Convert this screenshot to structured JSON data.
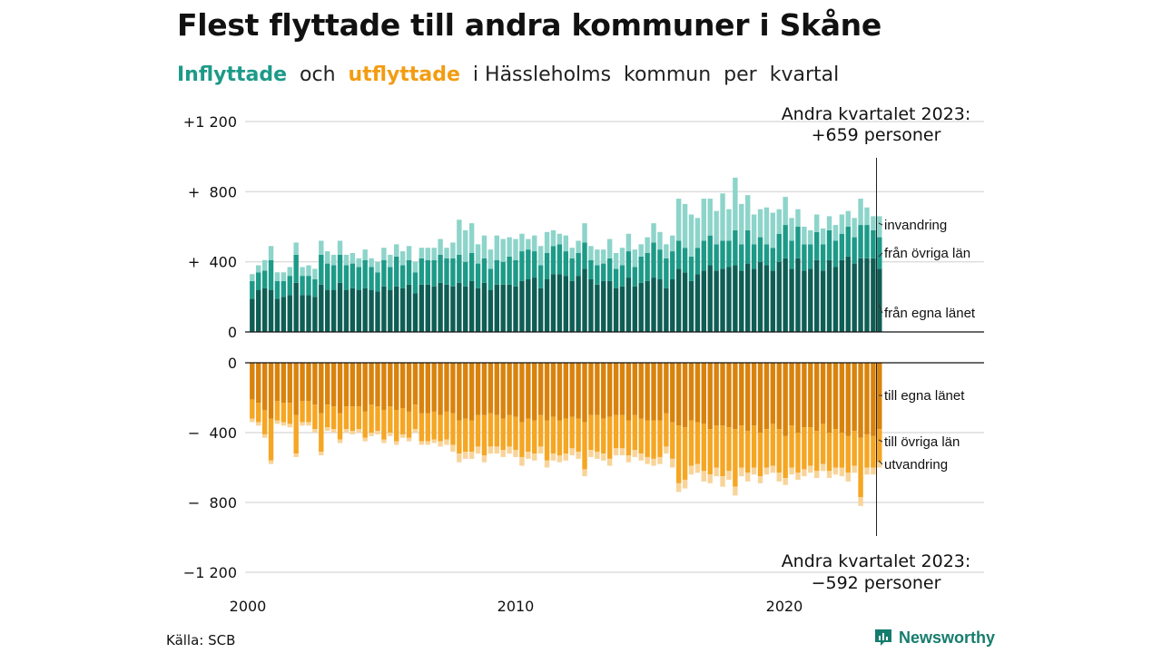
{
  "title": "Flest flyttade till andra kommuner i Skåne",
  "subtitle": {
    "in_label": "Inflyttade",
    "and_text": "och",
    "out_label": "utflyttade",
    "rest_text": "i Hässleholms  kommun  per  kvartal"
  },
  "source": "Källa: SCB",
  "brand": "Newsworthy",
  "colors": {
    "in_own": "#0f5e55",
    "in_other": "#1d9a88",
    "in_immig": "#8dd4ca",
    "out_own": "#d9830d",
    "out_other": "#f5a623",
    "out_emig": "#f8d49a",
    "grid": "#dddddd",
    "brand": "#167d6e"
  },
  "chart_data": {
    "type": "bar",
    "x_start": "2000 Q1",
    "x_ticks": [
      "2000",
      "2010",
      "2020"
    ],
    "top_panel": {
      "y_ticks": [
        "+1 200",
        "+  800",
        "+  400",
        "0"
      ],
      "ylim": [
        0,
        1200
      ],
      "series": [
        {
          "name": "från egna länet",
          "values": [
            190,
            240,
            250,
            240,
            190,
            200,
            210,
            280,
            210,
            210,
            200,
            270,
            240,
            240,
            280,
            240,
            250,
            240,
            250,
            240,
            230,
            260,
            240,
            260,
            250,
            270,
            220,
            270,
            270,
            260,
            280,
            270,
            260,
            280,
            260,
            290,
            250,
            280,
            240,
            270,
            270,
            270,
            260,
            290,
            300,
            310,
            250,
            300,
            330,
            330,
            320,
            290,
            320,
            360,
            300,
            270,
            290,
            290,
            250,
            260,
            310,
            260,
            280,
            290,
            310,
            300,
            250,
            300,
            360,
            340,
            290,
            330,
            350,
            380,
            350,
            360,
            370,
            380,
            350,
            390,
            360,
            400,
            380,
            350,
            400,
            420,
            360,
            420,
            350,
            360,
            410,
            350,
            410,
            370,
            410,
            430,
            390,
            420,
            420,
            420,
            360
          ]
        },
        {
          "name": "från övriga län",
          "values": [
            100,
            100,
            100,
            170,
            100,
            90,
            110,
            160,
            110,
            110,
            100,
            170,
            150,
            140,
            160,
            140,
            140,
            130,
            160,
            130,
            110,
            150,
            130,
            170,
            130,
            140,
            120,
            150,
            140,
            150,
            160,
            150,
            160,
            160,
            140,
            160,
            140,
            140,
            120,
            140,
            130,
            160,
            150,
            170,
            170,
            150,
            130,
            150,
            160,
            170,
            140,
            130,
            130,
            150,
            110,
            110,
            100,
            130,
            110,
            120,
            150,
            110,
            150,
            160,
            200,
            170,
            170,
            160,
            160,
            140,
            140,
            150,
            170,
            170,
            150,
            160,
            150,
            200,
            150,
            190,
            140,
            140,
            120,
            130,
            160,
            190,
            160,
            180,
            150,
            140,
            160,
            150,
            170,
            150,
            150,
            170,
            150,
            190,
            190,
            160,
            180
          ]
        },
        {
          "name": "invandring",
          "values": [
            40,
            40,
            60,
            80,
            50,
            50,
            50,
            70,
            50,
            60,
            60,
            80,
            70,
            60,
            80,
            60,
            60,
            50,
            60,
            50,
            60,
            70,
            70,
            70,
            80,
            80,
            60,
            60,
            70,
            70,
            90,
            60,
            90,
            200,
            180,
            170,
            110,
            130,
            110,
            140,
            130,
            110,
            120,
            100,
            60,
            90,
            110,
            120,
            90,
            60,
            90,
            60,
            70,
            110,
            80,
            90,
            80,
            110,
            90,
            100,
            100,
            100,
            70,
            90,
            110,
            100,
            80,
            90,
            240,
            250,
            240,
            170,
            240,
            210,
            190,
            270,
            180,
            300,
            230,
            200,
            170,
            160,
            210,
            200,
            140,
            160,
            130,
            100,
            100,
            80,
            100,
            90,
            80,
            90,
            110,
            90,
            110,
            150,
            100,
            80,
            120
          ]
        }
      ]
    },
    "bottom_panel": {
      "y_ticks": [
        "0",
        "−  400",
        "−  800",
        "−1 200"
      ],
      "ylim": [
        -1200,
        0
      ],
      "series": [
        {
          "name": "till egna länet",
          "values": [
            210,
            230,
            270,
            320,
            220,
            230,
            230,
            300,
            220,
            220,
            240,
            290,
            240,
            250,
            290,
            250,
            250,
            250,
            280,
            240,
            250,
            270,
            250,
            270,
            260,
            280,
            240,
            290,
            290,
            280,
            300,
            280,
            290,
            330,
            320,
            330,
            300,
            300,
            290,
            300,
            320,
            300,
            310,
            340,
            320,
            330,
            300,
            330,
            310,
            330,
            320,
            310,
            320,
            340,
            300,
            300,
            320,
            310,
            300,
            300,
            330,
            300,
            320,
            330,
            330,
            330,
            290,
            340,
            360,
            370,
            330,
            340,
            350,
            380,
            360,
            360,
            370,
            380,
            360,
            390,
            360,
            400,
            380,
            350,
            380,
            420,
            360,
            400,
            370,
            370,
            390,
            350,
            400,
            380,
            400,
            420,
            390,
            430,
            410,
            420,
            380
          ]
        },
        {
          "name": "till övriga län",
          "values": [
            110,
            110,
            140,
            240,
            110,
            110,
            120,
            220,
            120,
            120,
            140,
            220,
            130,
            130,
            150,
            130,
            140,
            130,
            150,
            160,
            140,
            170,
            150,
            180,
            150,
            150,
            140,
            160,
            160,
            160,
            150,
            160,
            180,
            190,
            190,
            180,
            180,
            230,
            190,
            180,
            180,
            180,
            190,
            200,
            190,
            190,
            180,
            230,
            210,
            200,
            200,
            180,
            190,
            270,
            200,
            210,
            200,
            240,
            190,
            190,
            200,
            200,
            200,
            210,
            220,
            210,
            190,
            210,
            330,
            300,
            260,
            240,
            270,
            260,
            240,
            290,
            250,
            330,
            240,
            240,
            240,
            250,
            220,
            240,
            250,
            240,
            240,
            230,
            240,
            220,
            230,
            230,
            220,
            220,
            200,
            210,
            200,
            340,
            190,
            180,
            190
          ]
        },
        {
          "name": "utvandring",
          "values": [
            20,
            20,
            20,
            20,
            20,
            20,
            20,
            20,
            20,
            20,
            20,
            20,
            20,
            20,
            20,
            20,
            20,
            20,
            20,
            20,
            20,
            20,
            20,
            20,
            20,
            20,
            20,
            20,
            20,
            20,
            30,
            30,
            40,
            50,
            40,
            40,
            40,
            40,
            40,
            40,
            40,
            40,
            40,
            50,
            40,
            40,
            40,
            40,
            40,
            40,
            40,
            40,
            40,
            40,
            40,
            40,
            40,
            40,
            40,
            40,
            40,
            40,
            40,
            40,
            40,
            40,
            40,
            50,
            50,
            50,
            50,
            50,
            60,
            50,
            50,
            60,
            50,
            50,
            50,
            50,
            40,
            40,
            40,
            40,
            50,
            40,
            40,
            40,
            40,
            40,
            40,
            40,
            40,
            40,
            50,
            50,
            40,
            50,
            40,
            40,
            30
          ]
        }
      ]
    },
    "annotations": {
      "top_label": "Andra kvartalet 2023:",
      "top_value": "+659 personer",
      "bottom_label": "Andra kvartalet 2023:",
      "bottom_value": "−592 personer"
    }
  }
}
